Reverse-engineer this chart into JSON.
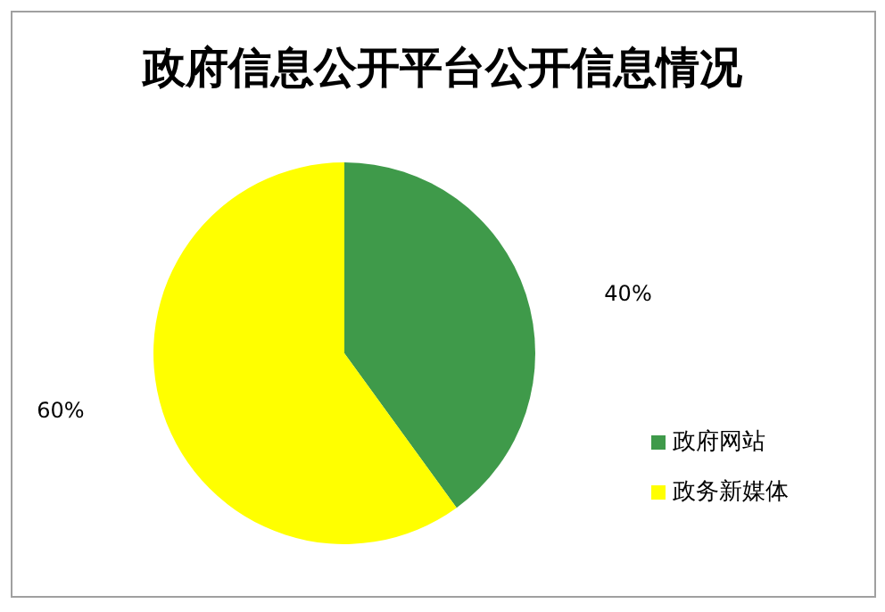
{
  "chart_data": {
    "type": "pie",
    "title": "政府信息公开平台公开信息情况",
    "categories": [
      "政府网站",
      "政务新媒体"
    ],
    "values": [
      40,
      60
    ],
    "colors": [
      "#3f9a4a",
      "#ffff00"
    ],
    "value_labels": [
      "40%",
      "60%"
    ],
    "legend": "bottom right"
  }
}
